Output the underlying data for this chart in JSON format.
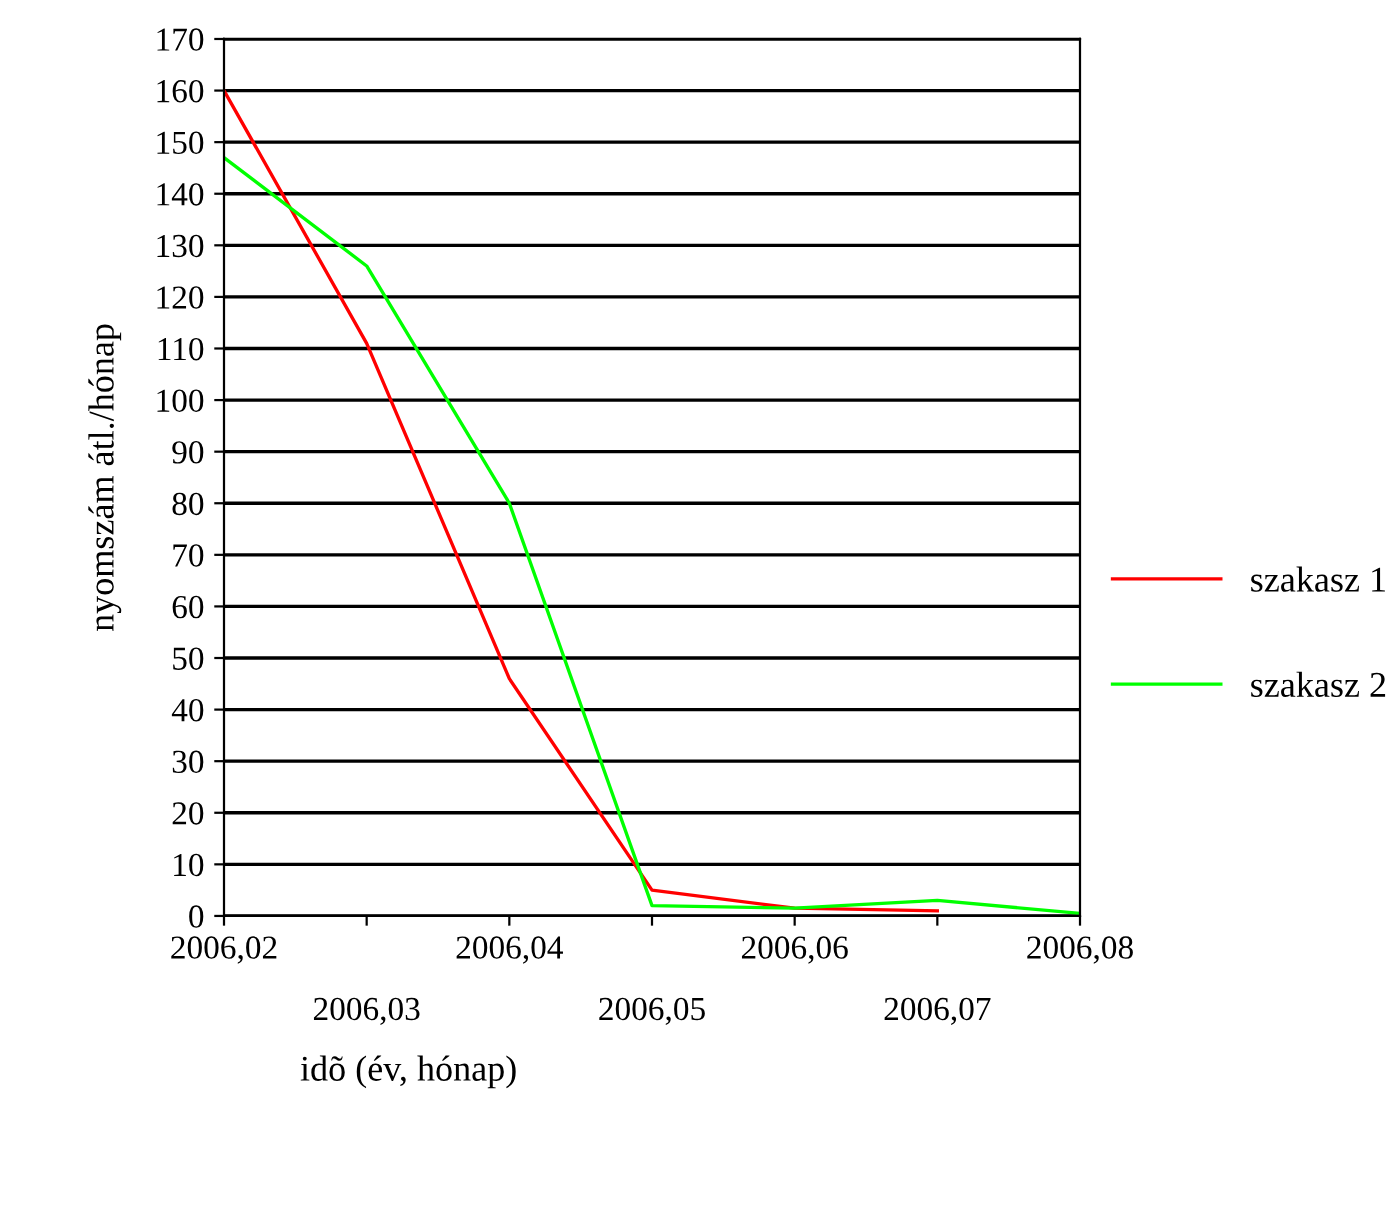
{
  "chart_data": {
    "type": "line",
    "xlabel": "idõ (év, hónap)",
    "ylabel": "nyomszám átl./hónap",
    "categories": [
      "2006,02",
      "2006,03",
      "2006,04",
      "2006,05",
      "2006,06",
      "2006,07",
      "2006,08"
    ],
    "series": [
      {
        "name": "szakasz 1",
        "color": "#ff0000",
        "values": [
          160,
          111,
          46,
          5,
          1.5,
          1,
          null
        ]
      },
      {
        "name": "szakasz 2",
        "color": "#00ff00",
        "values": [
          147,
          126,
          80,
          2,
          1.5,
          3,
          0.5
        ]
      }
    ],
    "ylim": [
      0,
      170
    ],
    "yticks": [
      0,
      10,
      20,
      30,
      40,
      50,
      60,
      70,
      80,
      90,
      100,
      110,
      120,
      130,
      140,
      150,
      160,
      170
    ],
    "grid": "y",
    "legend": "right",
    "marker": "none",
    "line_style": "solid"
  }
}
